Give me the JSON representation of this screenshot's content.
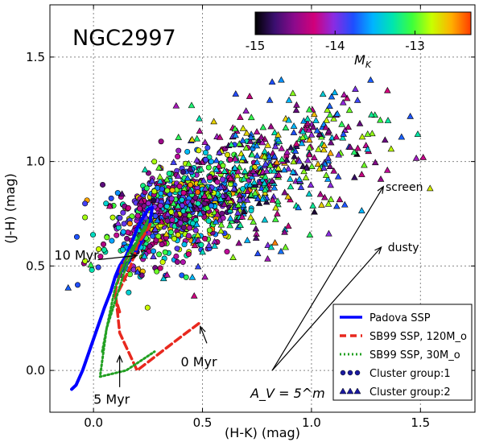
{
  "chart_data": {
    "type": "scatter",
    "title": "NGC2997",
    "xlabel": "(H-K) (mag)",
    "ylabel": "(J-H) (mag)",
    "xlim": [
      -0.2,
      1.75
    ],
    "ylim": [
      -0.2,
      1.75
    ],
    "xticks": [
      0.0,
      0.5,
      1.0,
      1.5
    ],
    "yticks": [
      0.0,
      0.5,
      1.0,
      1.5
    ],
    "xtick_labels": [
      "0.0",
      "0.5",
      "1.0",
      "1.5"
    ],
    "ytick_labels": [
      "0.0",
      "0.5",
      "1.0",
      "1.5"
    ],
    "grid": true,
    "colorbar": {
      "label": "M_K",
      "range": [
        -15,
        -12.3
      ],
      "ticks": [
        -15,
        -14,
        -13
      ],
      "tick_labels": [
        "-15",
        "-14",
        "-13"
      ],
      "colors": [
        "#000000",
        "#3b0f70",
        "#8c0a8c",
        "#d1007a",
        "#8a2be2",
        "#1e4fff",
        "#00b4ff",
        "#00e5b0",
        "#3cff3c",
        "#c8ff00",
        "#ffb000",
        "#ff3c00"
      ]
    },
    "series": [
      {
        "name": "Padova SSP",
        "kind": "line",
        "color": "#0000ff",
        "style": "solid",
        "x": [
          -0.1,
          -0.08,
          -0.05,
          0.0,
          0.05,
          0.08,
          0.1,
          0.12,
          0.15,
          0.17,
          0.19,
          0.2,
          0.22,
          0.25,
          0.27,
          0.26,
          0.24,
          0.23,
          0.22,
          0.2,
          0.17,
          0.14,
          0.11
        ],
        "y": [
          -0.09,
          -0.07,
          0.0,
          0.15,
          0.3,
          0.38,
          0.45,
          0.5,
          0.55,
          0.6,
          0.65,
          0.68,
          0.72,
          0.77,
          0.78,
          0.72,
          0.66,
          0.64,
          0.62,
          0.58,
          0.53,
          0.49,
          0.45
        ]
      },
      {
        "name": "SB99 SSP, 120M_o",
        "kind": "line",
        "color": "#e8281e",
        "style": "dashed",
        "x": [
          0.12,
          0.1,
          0.14,
          0.17,
          0.19,
          0.2,
          0.22,
          0.24,
          0.26,
          0.21,
          0.13,
          0.1,
          0.12,
          0.2,
          0.3,
          0.4,
          0.49
        ],
        "y": [
          0.28,
          0.35,
          0.43,
          0.5,
          0.56,
          0.6,
          0.63,
          0.66,
          0.7,
          0.63,
          0.5,
          0.38,
          0.18,
          0.0,
          0.08,
          0.16,
          0.23
        ]
      },
      {
        "name": "SB99 SSP, 30M_o",
        "kind": "line",
        "color": "#22a022",
        "style": "dotted",
        "x": [
          0.04,
          0.06,
          0.08,
          0.1,
          0.13,
          0.16,
          0.2,
          0.24,
          0.25,
          0.22,
          0.15,
          0.06,
          0.03,
          0.15,
          0.28
        ],
        "y": [
          0.09,
          0.2,
          0.3,
          0.4,
          0.48,
          0.56,
          0.62,
          0.68,
          0.72,
          0.66,
          0.5,
          0.2,
          -0.03,
          0.0,
          0.09
        ]
      }
    ],
    "scatter_groups": [
      {
        "name": "Cluster group:1",
        "marker": "circle",
        "x_center": 0.38,
        "y_center": 0.76,
        "x_spread": 0.16,
        "y_spread": 0.11,
        "count": 720,
        "mk_range": [
          -15,
          -12.3
        ]
      },
      {
        "name": "Cluster group:2",
        "marker": "triangle",
        "x_center": 0.78,
        "y_center": 0.95,
        "x_spread": 0.27,
        "y_spread": 0.16,
        "count": 480,
        "mk_range": [
          -15,
          -12.3
        ]
      }
    ],
    "annotations": [
      {
        "text": "10 Myr",
        "x": -0.18,
        "y": 0.53
      },
      {
        "text": "0 Myr",
        "x": 0.4,
        "y": 0.02
      },
      {
        "text": "5 Myr",
        "x": 0.0,
        "y": -0.16
      },
      {
        "text": "screen",
        "x": 1.34,
        "y": 0.86
      },
      {
        "text": "dusty",
        "x": 1.35,
        "y": 0.57
      },
      {
        "text": "A_V = 5^m",
        "x": 0.72,
        "y": -0.13
      }
    ],
    "reddening_vectors": [
      {
        "name": "screen",
        "from": [
          0.82,
          0.0
        ],
        "to": [
          1.33,
          0.88
        ]
      },
      {
        "name": "dusty",
        "from": [
          0.82,
          0.0
        ],
        "to": [
          1.32,
          0.59
        ]
      }
    ],
    "legend": {
      "position": "lower-right",
      "entries": [
        {
          "label": "Padova SSP",
          "marker": "solid-line",
          "color": "#0000ff"
        },
        {
          "label": "SB99 SSP, 120M_o",
          "marker": "dashed-line",
          "color": "#e8281e"
        },
        {
          "label": "SB99 SSP, 30M_o",
          "marker": "dotted-line",
          "color": "#22a022"
        },
        {
          "label": "Cluster group:1",
          "marker": "circles",
          "color": "#1a1aa0"
        },
        {
          "label": "Cluster group:2",
          "marker": "triangles",
          "color": "#1a1aa0"
        }
      ]
    }
  }
}
